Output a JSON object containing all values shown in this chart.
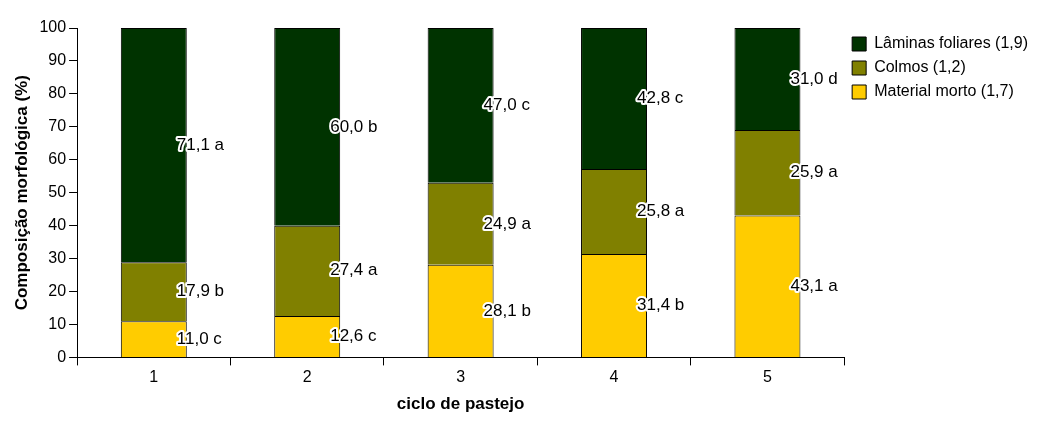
{
  "chart_data": {
    "type": "bar",
    "stacked": true,
    "xlabel": "ciclo de pastejo",
    "ylabel": "Composição morfológica (%)",
    "categories": [
      "1",
      "2",
      "3",
      "4",
      "5"
    ],
    "series": [
      {
        "name": "Material morto (1,7)",
        "color": "#ffcc00",
        "values": [
          11.0,
          12.6,
          28.1,
          31.4,
          43.1
        ],
        "value_labels": [
          "11,0 c",
          "12,6 c",
          "28,1 b",
          "31,4 b",
          "43,1 a"
        ]
      },
      {
        "name": "Colmos (1,2)",
        "color": "#808000",
        "values": [
          17.9,
          27.4,
          24.9,
          25.8,
          25.9
        ],
        "value_labels": [
          "17,9 b",
          "27,4 a",
          "24,9 a",
          "25,8 a",
          "25,9 a"
        ]
      },
      {
        "name": "Lâminas foliares (1,9)",
        "color": "#003300",
        "values": [
          71.1,
          60.0,
          47.0,
          42.8,
          31.0
        ],
        "value_labels": [
          "71,1 a",
          "60,0 b",
          "47,0 c",
          "42,8 c",
          "31,0 d"
        ]
      }
    ],
    "ylim": [
      0,
      100
    ],
    "yticks": [
      0,
      10,
      20,
      30,
      40,
      50,
      60,
      70,
      80,
      90,
      100
    ],
    "grid": false,
    "legend": "right"
  }
}
